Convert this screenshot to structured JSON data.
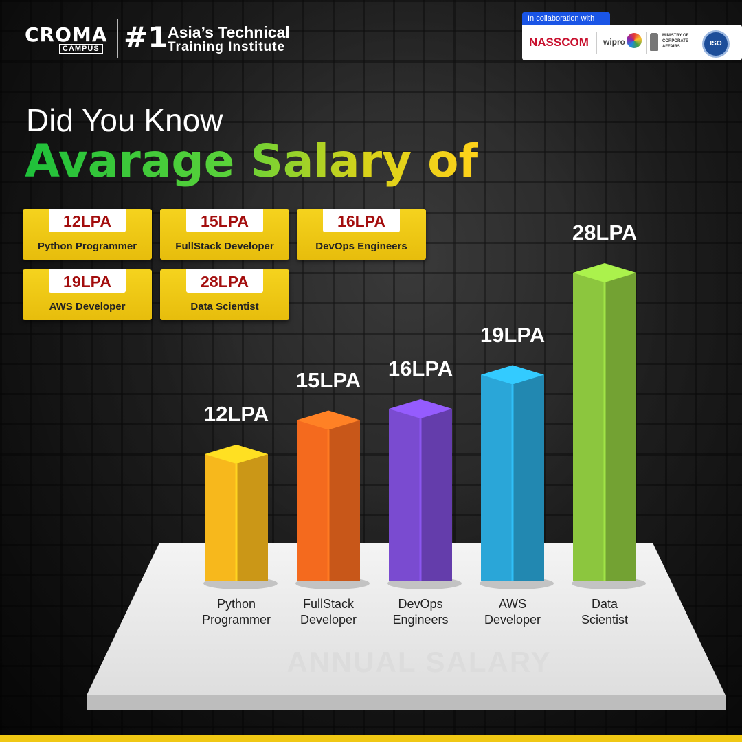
{
  "brand": {
    "logo_word": "CROMA",
    "logo_sub": "CAMPUS",
    "rank": "#1",
    "tagline_1": "Asia’s Technical",
    "tagline_2": "Training Institute"
  },
  "collab": {
    "label": "In collaboration with",
    "partners": [
      "NASSCOM",
      "wipro",
      "MINISTRY OF CORPORATE AFFAIRS",
      "ISO"
    ]
  },
  "heading": {
    "line1": "Did You Know",
    "line2": "Avarage Salary of"
  },
  "cards": [
    {
      "value": "12LPA",
      "label": "Python Programmer"
    },
    {
      "value": "15LPA",
      "label": "FullStack Developer"
    },
    {
      "value": "16LPA",
      "label": "DevOps Engineers"
    },
    {
      "value": "19LPA",
      "label": "AWS Developer"
    },
    {
      "value": "28LPA",
      "label": "Data Scientist"
    }
  ],
  "chart_data": {
    "type": "bar",
    "categories": [
      "Python Programmer",
      "FullStack Developer",
      "DevOps Engineers",
      "AWS Developer",
      "Data Scientist"
    ],
    "category_lines": [
      [
        "Python",
        "Programmer"
      ],
      [
        "FullStack",
        "Developer"
      ],
      [
        "DevOps",
        "Engineers"
      ],
      [
        "AWS",
        "Developer"
      ],
      [
        "Data",
        "Scientist"
      ]
    ],
    "values": [
      12,
      15,
      16,
      19,
      28
    ],
    "value_labels": [
      "12LPA",
      "15LPA",
      "16LPA",
      "19LPA",
      "28LPA"
    ],
    "colors": [
      "#f7b81c",
      "#f46a1e",
      "#7a4bd0",
      "#2aa6d8",
      "#8cc63e"
    ],
    "axis_label": "ANNUAL SALARY",
    "title": "Avarage Salary of"
  }
}
